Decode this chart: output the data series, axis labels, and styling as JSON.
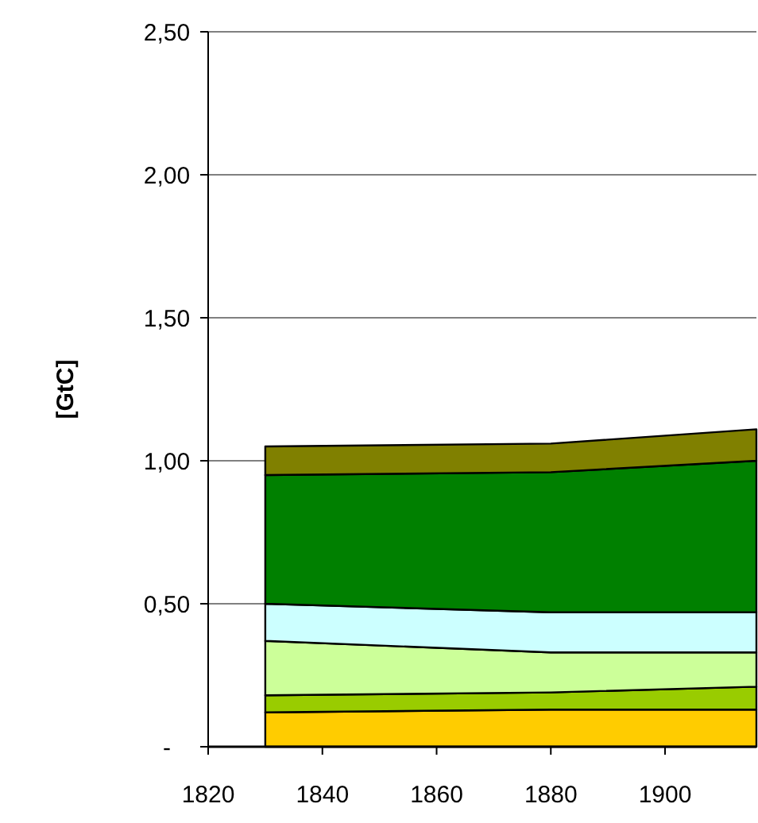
{
  "chart_data": {
    "type": "area",
    "stacked": true,
    "ylabel": "[GtC]",
    "x": [
      1830,
      1880,
      1916
    ],
    "series": [
      {
        "color": "#ffcc00",
        "values": [
          0.12,
          0.13,
          0.13
        ]
      },
      {
        "color": "#99cc00",
        "values": [
          0.06,
          0.06,
          0.08
        ]
      },
      {
        "color": "#ccff99",
        "values": [
          0.19,
          0.14,
          0.12
        ]
      },
      {
        "color": "#ccffff",
        "values": [
          0.13,
          0.14,
          0.14
        ]
      },
      {
        "color": "#008000",
        "values": [
          0.45,
          0.49,
          0.53
        ]
      },
      {
        "color": "#808000",
        "values": [
          0.1,
          0.1,
          0.11
        ]
      }
    ],
    "xlim": [
      1820,
      1916
    ],
    "xticks": [
      1820,
      1840,
      1860,
      1880,
      1900
    ],
    "ylim": [
      0,
      2.5
    ],
    "yticks": [
      {
        "value": 0,
        "label": "-"
      },
      {
        "value": 0.5,
        "label": "0,50"
      },
      {
        "value": 1,
        "label": "1,00"
      },
      {
        "value": 1.5,
        "label": "1,50"
      },
      {
        "value": 2,
        "label": "2,00"
      },
      {
        "value": 2.5,
        "label": "2,50"
      }
    ],
    "grid": "y"
  }
}
